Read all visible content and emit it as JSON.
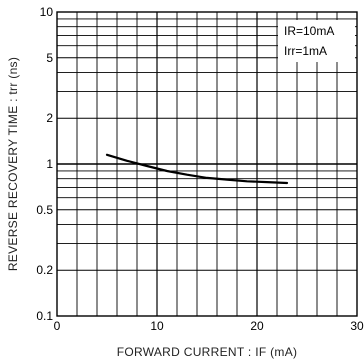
{
  "chart_data": {
    "type": "line",
    "xlabel": "FORWARD  CURRENT : IF (mA)",
    "ylabel": "REVERSE  RECOVERY  TIME : trr (ns)",
    "x_scale": "linear",
    "y_scale": "log",
    "xlim": [
      0,
      30
    ],
    "ylim": [
      0.1,
      10
    ],
    "x_ticks": [
      0,
      10,
      20,
      30
    ],
    "x_tick_labels": [
      "0",
      "10",
      "20",
      "30"
    ],
    "y_ticks": [
      0.1,
      0.2,
      0.5,
      1,
      2,
      5,
      10
    ],
    "y_tick_labels": [
      "0.1",
      "0.2",
      "0.5",
      "1",
      "2",
      "5",
      "10"
    ],
    "grid": true,
    "legend_position": "top-right",
    "legend": [
      "IR=10mA",
      "Irr=1mA"
    ],
    "series": [
      {
        "x": [
          5,
          7,
          9,
          11,
          13,
          15,
          17,
          19,
          21,
          23
        ],
        "y": [
          1.15,
          1.05,
          0.97,
          0.9,
          0.85,
          0.81,
          0.79,
          0.77,
          0.76,
          0.75
        ]
      }
    ]
  }
}
